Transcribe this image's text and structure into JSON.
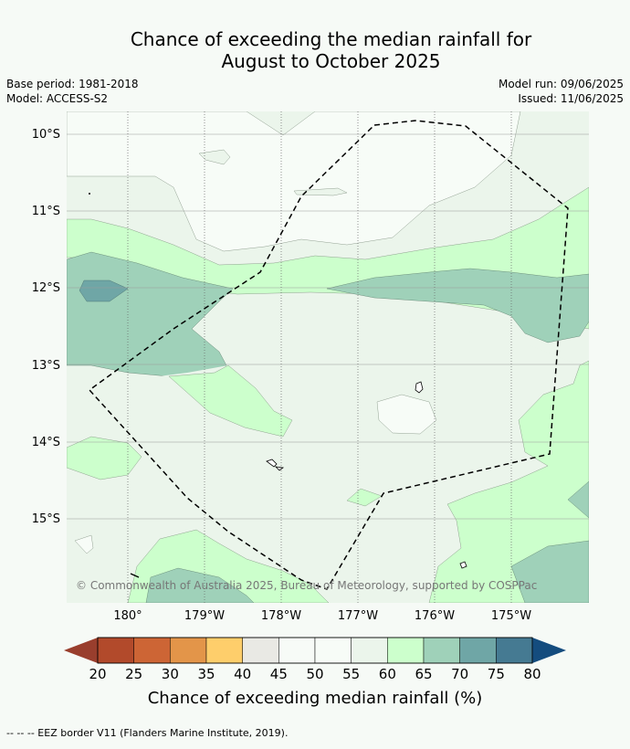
{
  "title": {
    "line1": "Chance of exceeding the median rainfall for",
    "line2": "August to October 2025"
  },
  "meta": {
    "base_period": "Base period: 1981-2018",
    "model": "Model: ACCESS-S2",
    "model_run": "Model run: 09/06/2025",
    "issued": "Issued: 11/06/2025"
  },
  "map": {
    "lat_labels": [
      "10°S",
      "11°S",
      "12°S",
      "13°S",
      "14°S",
      "15°S"
    ],
    "lon_labels": [
      "180°",
      "179°W",
      "178°W",
      "177°W",
      "176°W",
      "175°W"
    ],
    "copyright": "© Commonwealth of Australia 2025, Bureau of Meteorology, supported by COSPPac"
  },
  "colorbar": {
    "ticks": [
      "20",
      "25",
      "30",
      "35",
      "40",
      "45",
      "50",
      "55",
      "60",
      "65",
      "70",
      "75",
      "80"
    ],
    "colors": [
      "#b24a2b",
      "#cd6535",
      "#e39549",
      "#fece6b",
      "#e9e9e4",
      "#f7fbf7",
      "#f7fcf7",
      "#ebf5eb",
      "#ccffcc",
      "#9fd1b9",
      "#6fa6a6",
      "#457a92"
    ],
    "low_arrow_color": "#993e2d",
    "high_arrow_color": "#144c7e",
    "label": "Chance of exceeding median rainfall (%)"
  },
  "footer": {
    "eez_note": "--  --  -- EEZ border V11 (Flanders Marine Institute, 2019)."
  }
}
